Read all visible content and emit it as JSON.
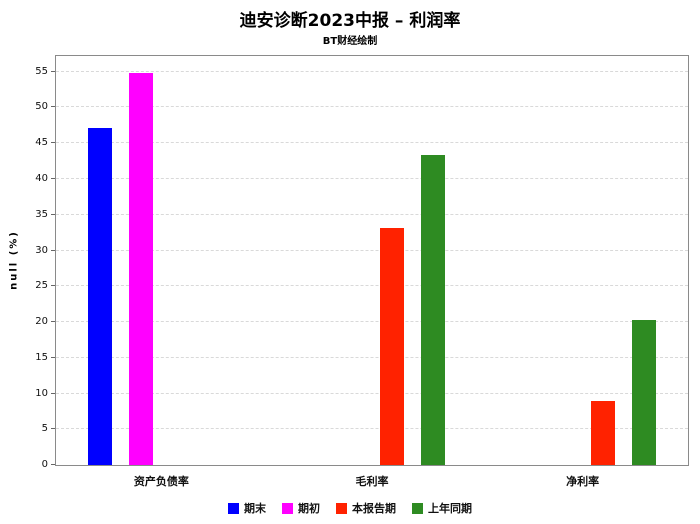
{
  "chart_data": {
    "type": "bar",
    "title": "迪安诊断2023中报 – 利润率",
    "subtitle": "BT财经绘制",
    "ylabel": "null (%)",
    "xlabel": "",
    "categories": [
      "资产负债率",
      "毛利率",
      "净利率"
    ],
    "series": [
      {
        "name": "期末",
        "color": "#0000ff",
        "values": [
          47.2,
          null,
          null
        ]
      },
      {
        "name": "期初",
        "color": "#ff00ff",
        "values": [
          54.8,
          null,
          null
        ]
      },
      {
        "name": "本报告期",
        "color": "#ff2200",
        "values": [
          null,
          33.2,
          8.9
        ]
      },
      {
        "name": "上年同期",
        "color": "#2e8b22",
        "values": [
          null,
          43.3,
          20.3
        ]
      }
    ],
    "ylim": [
      0,
      57.2
    ],
    "yticks": [
      0,
      5,
      10,
      15,
      20,
      25,
      30,
      35,
      40,
      45,
      50,
      55
    ],
    "grid": true,
    "grid_style": "dashed",
    "legend_position": "bottom",
    "background": "#ffffff",
    "plot_border_color": "#8a8a8a"
  }
}
